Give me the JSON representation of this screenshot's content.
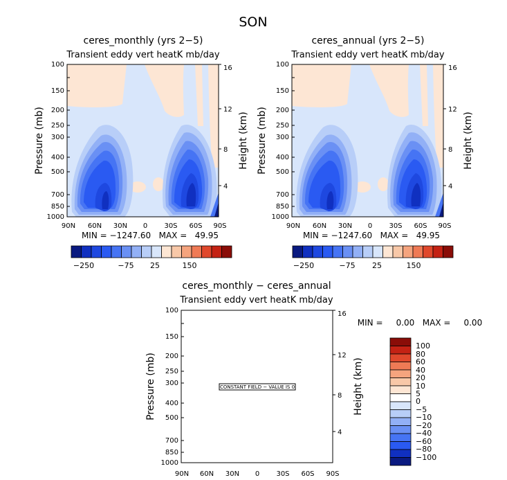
{
  "title": "SON",
  "chart_data": [
    {
      "type": "heatmap",
      "title": "ceres_monthly (yrs 2−5)",
      "subtitle": "Transient eddy vert heatK mb/day",
      "ylabel": "Pressure (mb)",
      "y2label": "Height (km)",
      "xticks": [
        "90N",
        "60N",
        "30N",
        "0",
        "30S",
        "60S",
        "90S"
      ],
      "yticks": [
        100,
        150,
        200,
        250,
        300,
        400,
        500,
        700,
        850,
        1000
      ],
      "y2ticks": [
        16,
        12,
        8,
        4
      ],
      "ylim": [
        1000,
        100
      ],
      "stats": "MIN = −1247.60   MAX =   49.95",
      "colorbar_labels": [
        "−250",
        "−75",
        "25",
        "150"
      ]
    },
    {
      "type": "heatmap",
      "title": "ceres_annual (yrs 2−5)",
      "subtitle": "Transient eddy vert heatK mb/day",
      "ylabel": "Pressure (mb)",
      "y2label": "Height (km)",
      "xticks": [
        "90N",
        "60N",
        "30N",
        "0",
        "30S",
        "60S",
        "90S"
      ],
      "yticks": [
        100,
        150,
        200,
        250,
        300,
        400,
        500,
        700,
        850,
        1000
      ],
      "y2ticks": [
        16,
        12,
        8,
        4
      ],
      "ylim": [
        1000,
        100
      ],
      "stats": "MIN = −1247.60   MAX =   49.95",
      "colorbar_labels": [
        "−250",
        "−75",
        "25",
        "150"
      ]
    },
    {
      "type": "heatmap",
      "title": "ceres_monthly − ceres_annual",
      "subtitle": "Transient eddy vert heatK mb/day",
      "ylabel": "Pressure (mb)",
      "y2label": "Height (km)",
      "xticks": [
        "90N",
        "60N",
        "30N",
        "0",
        "30S",
        "60S",
        "90S"
      ],
      "yticks": [
        100,
        150,
        200,
        250,
        300,
        400,
        500,
        700,
        850,
        1000
      ],
      "y2ticks": [
        16,
        12,
        8,
        4
      ],
      "ylim": [
        1000,
        100
      ],
      "stats": "MIN =     0.00   MAX =     0.00",
      "annotation": "CONSTANT FIELD − VALUE IS 0",
      "colorbar_labels": [
        "100",
        "80",
        "60",
        "40",
        "20",
        "10",
        "5",
        "0",
        "−5",
        "−10",
        "−20",
        "−40",
        "−60",
        "−80",
        "−100"
      ]
    }
  ],
  "colors": {
    "top_scale": [
      "#0a1a80",
      "#1030c0",
      "#1e48e0",
      "#2a5af2",
      "#4674f4",
      "#6a90f4",
      "#92b0f6",
      "#b8cef8",
      "#d8e6fb",
      "#fde6d4",
      "#f8c8a8",
      "#f5a47e",
      "#ef7a55",
      "#e0482c",
      "#c42214",
      "#8a0d08"
    ],
    "diff_scale": [
      "#8a0d08",
      "#c42214",
      "#e0482c",
      "#ef7a55",
      "#f5a47e",
      "#f8c8a8",
      "#fde6d4",
      "#ffffff",
      "#d8e6fb",
      "#b8cef8",
      "#92b0f6",
      "#6a90f4",
      "#4674f4",
      "#2a5af2",
      "#1030c0",
      "#0a1a80"
    ]
  }
}
